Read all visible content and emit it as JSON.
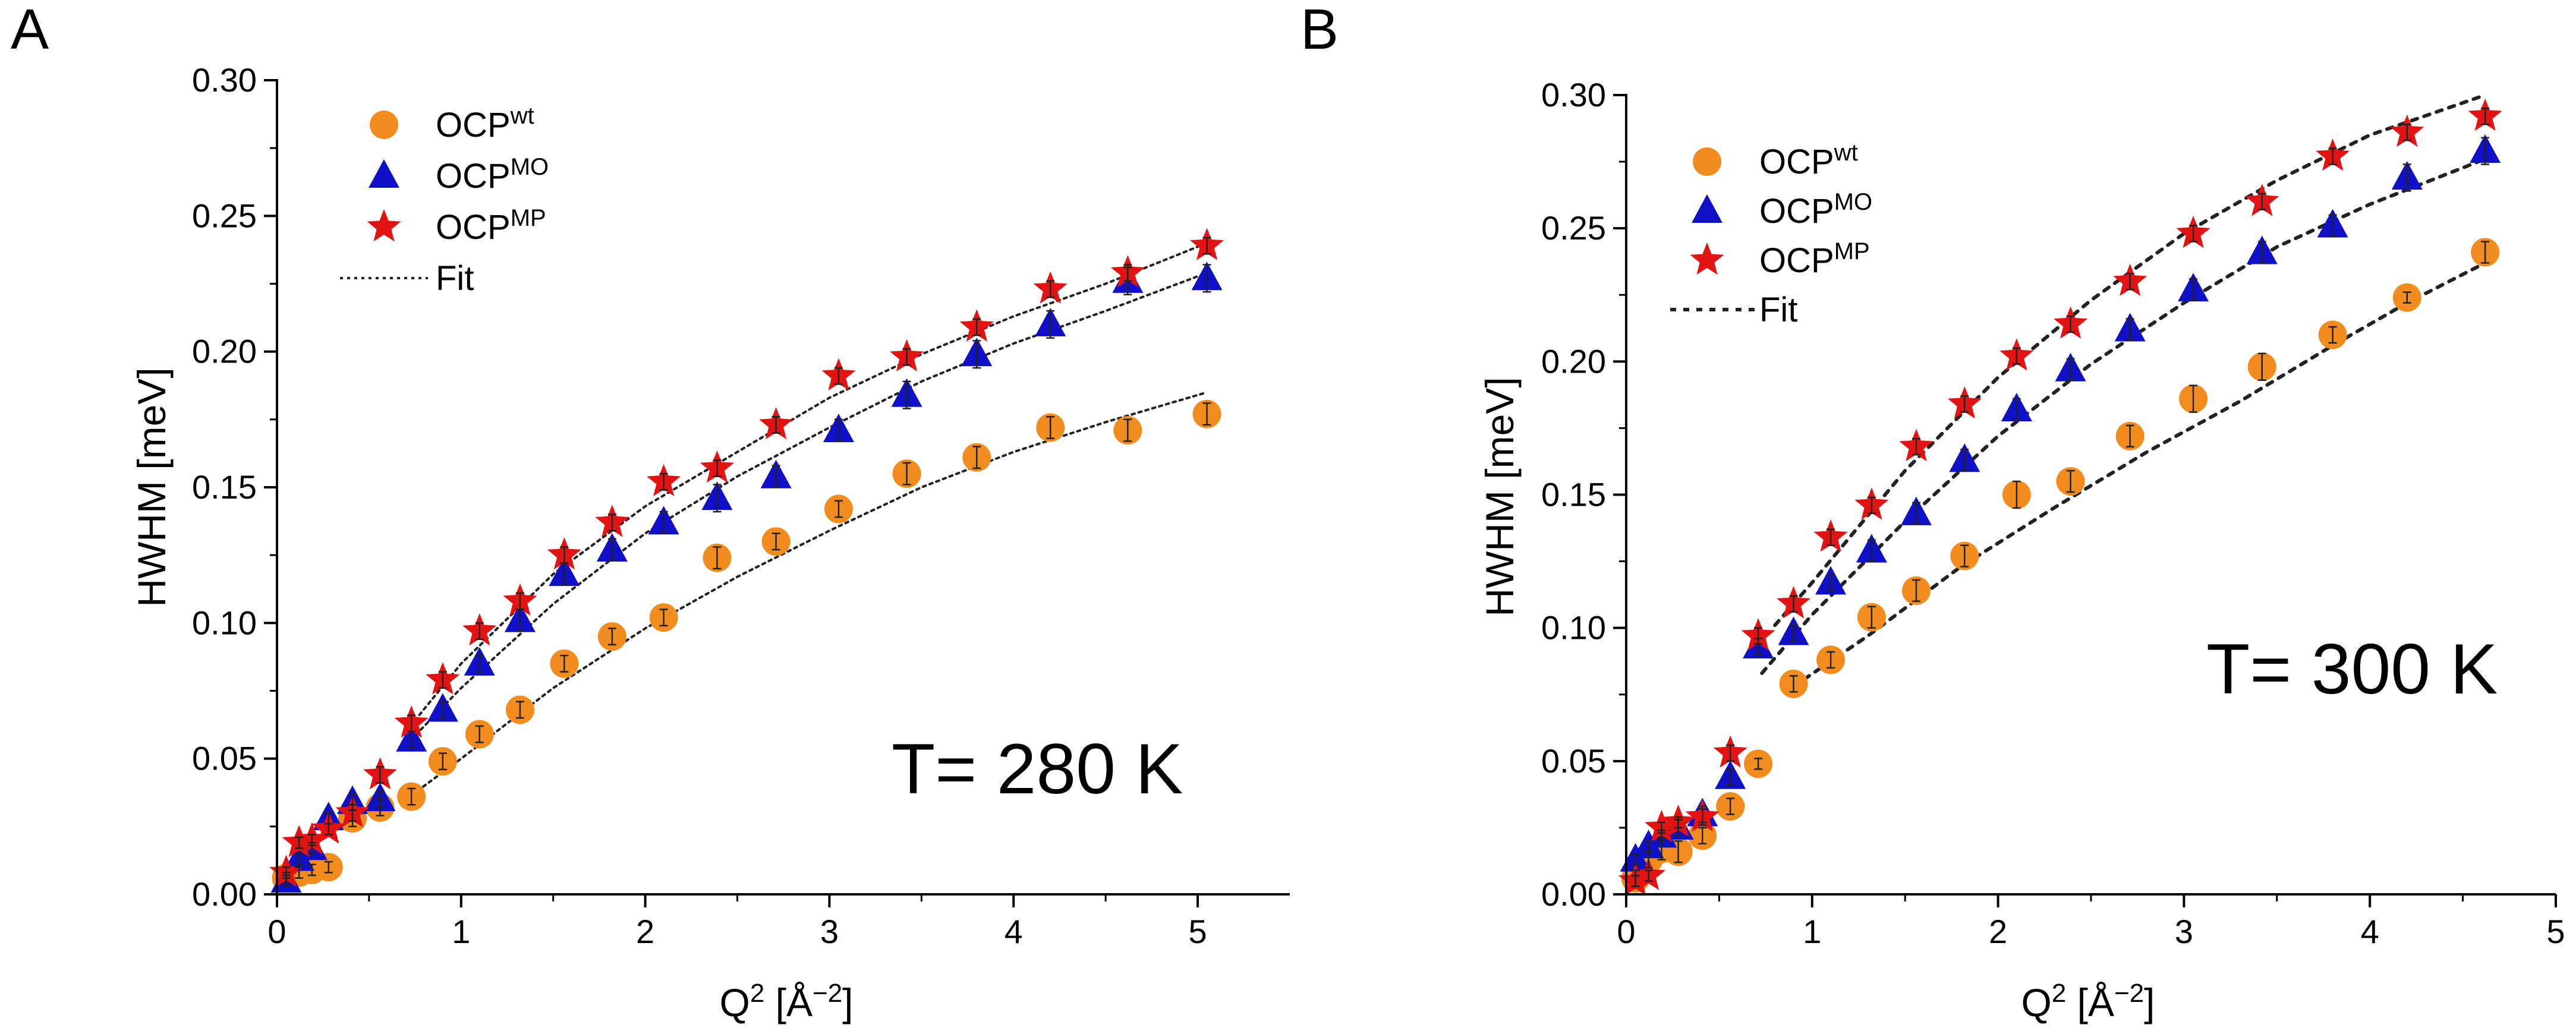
{
  "colors": {
    "wt": "#F28C1E",
    "mo": "#1010C8",
    "mp": "#E31313",
    "fit": "#222222",
    "axis": "#000000",
    "errbar": "#222222"
  },
  "chart_data": [
    {
      "panel": "A",
      "type": "scatter",
      "annotation": "T= 280 K",
      "xlabel_main": "Q",
      "xlabel_sup": "2",
      "xlabel_open": " [Å",
      "xlabel_unit_sup": "−2",
      "xlabel_close": "]",
      "ylabel": "HWHM [meV]",
      "xlim": [
        0,
        5.5
      ],
      "ylim": [
        0,
        0.3
      ],
      "xticks": [
        0,
        1,
        2,
        3,
        4,
        5
      ],
      "xtick_labels": [
        "0",
        "1",
        "2",
        "3",
        "4",
        "5"
      ],
      "yticks": [
        0,
        0.05,
        0.1,
        0.15,
        0.2,
        0.25,
        0.3
      ],
      "ytick_labels": [
        "0.00",
        "0.05",
        "0.10",
        "0.15",
        "0.20",
        "0.25",
        "0.30"
      ],
      "legend_position": "top-left",
      "legend": [
        {
          "key": "wt",
          "base": "OCP",
          "sup": "wt",
          "marker": "circle"
        },
        {
          "key": "mo",
          "base": "OCP",
          "sup": "MO",
          "marker": "triangle"
        },
        {
          "key": "mp",
          "base": "OCP",
          "sup": "MP",
          "marker": "star"
        },
        {
          "key": "fit",
          "label": "Fit",
          "marker": "dotted-line"
        }
      ],
      "series": [
        {
          "name": "OCPwt",
          "key": "wt",
          "marker": "circle",
          "x": [
            0.05,
            0.12,
            0.19,
            0.28,
            0.41,
            0.56,
            0.73,
            0.9,
            1.1,
            1.32,
            1.56,
            1.82,
            2.1,
            2.39,
            2.71,
            3.05,
            3.42,
            3.8,
            4.2,
            4.62,
            5.05
          ],
          "y": [
            0.006,
            0.008,
            0.009,
            0.01,
            0.028,
            0.032,
            0.036,
            0.049,
            0.059,
            0.068,
            0.085,
            0.095,
            0.102,
            0.124,
            0.13,
            0.142,
            0.155,
            0.161,
            0.172,
            0.171,
            0.177
          ],
          "err": [
            0.002,
            0.002,
            0.002,
            0.002,
            0.003,
            0.003,
            0.003,
            0.003,
            0.003,
            0.003,
            0.003,
            0.003,
            0.003,
            0.004,
            0.003,
            0.003,
            0.004,
            0.004,
            0.004,
            0.004,
            0.004
          ]
        },
        {
          "name": "OCPMO",
          "key": "mo",
          "marker": "triangle",
          "x": [
            0.05,
            0.12,
            0.19,
            0.28,
            0.41,
            0.56,
            0.73,
            0.9,
            1.1,
            1.32,
            1.56,
            1.82,
            2.1,
            2.39,
            2.71,
            3.05,
            3.42,
            3.8,
            4.2,
            4.62,
            5.05
          ],
          "y": [
            0.005,
            0.013,
            0.017,
            0.028,
            0.034,
            0.035,
            0.057,
            0.068,
            0.085,
            0.101,
            0.118,
            0.127,
            0.137,
            0.146,
            0.154,
            0.171,
            0.184,
            0.199,
            0.21,
            0.226,
            0.227
          ],
          "err": [
            0.002,
            0.002,
            0.002,
            0.002,
            0.003,
            0.003,
            0.003,
            0.003,
            0.003,
            0.004,
            0.004,
            0.004,
            0.004,
            0.005,
            0.004,
            0.004,
            0.005,
            0.005,
            0.005,
            0.005,
            0.005
          ]
        },
        {
          "name": "OCPMP",
          "key": "mp",
          "marker": "star",
          "x": [
            0.05,
            0.12,
            0.19,
            0.28,
            0.41,
            0.56,
            0.73,
            0.9,
            1.1,
            1.32,
            1.56,
            1.82,
            2.1,
            2.39,
            2.71,
            3.05,
            3.42,
            3.8,
            4.2,
            4.62,
            5.05
          ],
          "y": [
            0.008,
            0.019,
            0.02,
            0.024,
            0.03,
            0.044,
            0.063,
            0.079,
            0.097,
            0.108,
            0.125,
            0.137,
            0.152,
            0.157,
            0.173,
            0.191,
            0.198,
            0.209,
            0.223,
            0.229,
            0.239
          ],
          "err": [
            0.002,
            0.002,
            0.002,
            0.002,
            0.003,
            0.003,
            0.003,
            0.003,
            0.003,
            0.003,
            0.003,
            0.003,
            0.003,
            0.003,
            0.003,
            0.003,
            0.003,
            0.003,
            0.003,
            0.003,
            0.003
          ]
        }
      ],
      "fits": [
        {
          "key": "wt",
          "x": [
            0.7,
            1.0,
            1.5,
            2.0,
            2.5,
            3.0,
            3.5,
            4.0,
            4.5,
            5.05
          ],
          "y": [
            0.035,
            0.05,
            0.076,
            0.098,
            0.117,
            0.134,
            0.15,
            0.163,
            0.174,
            0.185
          ]
        },
        {
          "key": "mo",
          "x": [
            0.7,
            1.0,
            1.5,
            2.0,
            2.5,
            3.0,
            3.5,
            4.0,
            4.5,
            5.05
          ],
          "y": [
            0.055,
            0.076,
            0.107,
            0.133,
            0.154,
            0.172,
            0.189,
            0.203,
            0.215,
            0.229
          ]
        },
        {
          "key": "mp",
          "x": [
            0.7,
            1.0,
            1.5,
            2.0,
            2.5,
            3.0,
            3.5,
            4.0,
            4.5,
            5.05
          ],
          "y": [
            0.06,
            0.085,
            0.118,
            0.143,
            0.163,
            0.183,
            0.199,
            0.213,
            0.225,
            0.24
          ]
        }
      ]
    },
    {
      "panel": "B",
      "type": "scatter",
      "annotation": "T= 300 K",
      "xlabel_main": "Q",
      "xlabel_sup": "2",
      "xlabel_open": " [Å",
      "xlabel_unit_sup": "−2",
      "xlabel_close": "]",
      "ylabel": "HWHM [meV]",
      "xlim": [
        0,
        5
      ],
      "ylim": [
        0,
        0.3
      ],
      "xticks": [
        0,
        1,
        2,
        3,
        4,
        5
      ],
      "xtick_labels": [
        "0",
        "1",
        "2",
        "3",
        "4",
        "5"
      ],
      "yticks": [
        0,
        0.05,
        0.1,
        0.15,
        0.2,
        0.25,
        0.3
      ],
      "ytick_labels": [
        "0.00",
        "0.05",
        "0.10",
        "0.15",
        "0.20",
        "0.25",
        "0.30"
      ],
      "legend_position": "top-left",
      "legend": [
        {
          "key": "wt",
          "base": "OCP",
          "sup": "wt",
          "marker": "circle"
        },
        {
          "key": "mo",
          "base": "OCP",
          "sup": "MO",
          "marker": "triangle"
        },
        {
          "key": "mp",
          "base": "OCP",
          "sup": "MP",
          "marker": "star"
        },
        {
          "key": "fit",
          "label": "Fit",
          "marker": "dotted-line"
        }
      ],
      "series": [
        {
          "name": "OCPwt",
          "key": "wt",
          "marker": "circle",
          "x": [
            0.05,
            0.12,
            0.19,
            0.28,
            0.41,
            0.56,
            0.71,
            0.9,
            1.1,
            1.32,
            1.56,
            1.82,
            2.1,
            2.39,
            2.71,
            3.05,
            3.42,
            3.8,
            4.2,
            4.62
          ],
          "y": [
            0.006,
            0.013,
            0.017,
            0.016,
            0.022,
            0.033,
            0.049,
            0.079,
            0.088,
            0.104,
            0.114,
            0.127,
            0.15,
            0.155,
            0.172,
            0.186,
            0.198,
            0.21,
            0.224,
            0.241
          ],
          "err": [
            0.003,
            0.003,
            0.004,
            0.004,
            0.003,
            0.003,
            0.002,
            0.003,
            0.003,
            0.004,
            0.004,
            0.004,
            0.005,
            0.004,
            0.004,
            0.005,
            0.005,
            0.003,
            0.002,
            0.004
          ]
        },
        {
          "name": "OCPMO",
          "key": "mo",
          "marker": "triangle",
          "x": [
            0.05,
            0.12,
            0.19,
            0.28,
            0.41,
            0.56,
            0.71,
            0.9,
            1.1,
            1.32,
            1.56,
            1.82,
            2.1,
            2.39,
            2.71,
            3.05,
            3.42,
            3.8,
            4.2,
            4.62
          ],
          "y": [
            0.013,
            0.018,
            0.022,
            0.025,
            0.03,
            0.044,
            0.093,
            0.098,
            0.117,
            0.129,
            0.143,
            0.163,
            0.182,
            0.197,
            0.212,
            0.227,
            0.241,
            0.251,
            0.269,
            0.279
          ],
          "err": [
            0.002,
            0.002,
            0.002,
            0.003,
            0.003,
            0.003,
            0.003,
            0.003,
            0.003,
            0.004,
            0.004,
            0.004,
            0.004,
            0.004,
            0.004,
            0.004,
            0.004,
            0.004,
            0.005,
            0.005
          ]
        },
        {
          "name": "OCPMP",
          "key": "mp",
          "marker": "star",
          "x": [
            0.05,
            0.12,
            0.19,
            0.28,
            0.41,
            0.56,
            0.71,
            0.9,
            1.1,
            1.32,
            1.56,
            1.82,
            2.1,
            2.39,
            2.71,
            3.05,
            3.42,
            3.8,
            4.2,
            4.62
          ],
          "y": [
            0.005,
            0.007,
            0.025,
            0.027,
            0.029,
            0.053,
            0.097,
            0.109,
            0.134,
            0.146,
            0.168,
            0.184,
            0.202,
            0.214,
            0.23,
            0.248,
            0.26,
            0.277,
            0.286,
            0.292
          ],
          "err": [
            0.002,
            0.002,
            0.002,
            0.002,
            0.003,
            0.003,
            0.003,
            0.003,
            0.003,
            0.003,
            0.003,
            0.003,
            0.003,
            0.003,
            0.003,
            0.003,
            0.003,
            0.003,
            0.003,
            0.003
          ]
        }
      ],
      "fits": [
        {
          "key": "wt",
          "x": [
            0.9,
            1.3,
            1.8,
            2.3,
            2.8,
            3.3,
            3.8,
            4.2,
            4.62
          ],
          "y": [
            0.078,
            0.097,
            0.123,
            0.145,
            0.166,
            0.185,
            0.206,
            0.222,
            0.237
          ]
        },
        {
          "key": "mo",
          "x": [
            0.73,
            1.0,
            1.5,
            2.0,
            2.5,
            3.0,
            3.5,
            4.0,
            4.62
          ],
          "y": [
            0.083,
            0.105,
            0.14,
            0.172,
            0.199,
            0.222,
            0.243,
            0.259,
            0.276
          ]
        },
        {
          "key": "mp",
          "x": [
            0.8,
            1.0,
            1.5,
            2.0,
            2.5,
            3.0,
            3.5,
            4.0,
            4.62
          ],
          "y": [
            0.101,
            0.117,
            0.159,
            0.194,
            0.223,
            0.248,
            0.268,
            0.285,
            0.3
          ]
        }
      ]
    }
  ]
}
